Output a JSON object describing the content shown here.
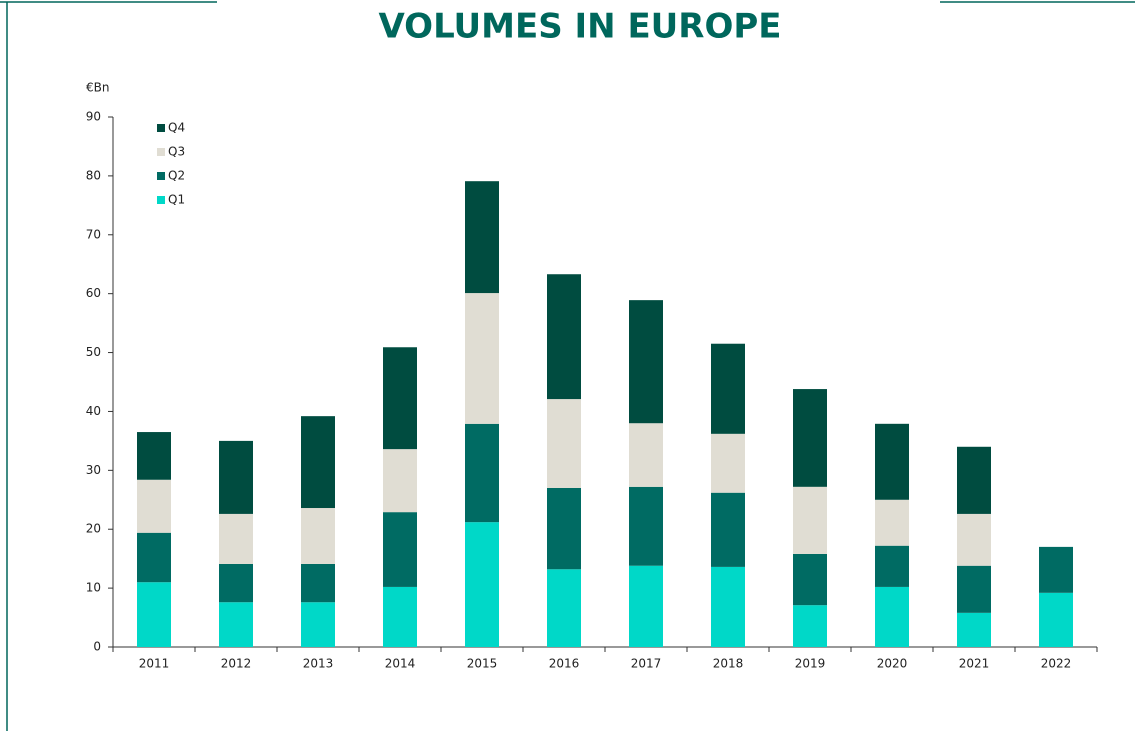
{
  "chart_data": {
    "type": "stacked_bar",
    "title": "VOLUMES IN EUROPE",
    "y_label": "€Bn",
    "categories": [
      "2011",
      "2012",
      "2013",
      "2014",
      "2015",
      "2016",
      "2017",
      "2018",
      "2019",
      "2020",
      "2021",
      "2022"
    ],
    "series": [
      {
        "name": "Q1",
        "color": "#00d8c8",
        "values": [
          11.0,
          7.6,
          7.6,
          10.2,
          21.2,
          13.2,
          13.8,
          13.6,
          7.1,
          10.2,
          5.8,
          9.2
        ]
      },
      {
        "name": "Q2",
        "color": "#006b63",
        "values": [
          8.4,
          6.5,
          6.5,
          12.7,
          16.7,
          13.8,
          13.4,
          12.6,
          8.7,
          7.0,
          8.0,
          7.8
        ]
      },
      {
        "name": "Q3",
        "color": "#e0ddd3",
        "values": [
          9.0,
          8.5,
          9.5,
          10.7,
          22.2,
          15.1,
          10.8,
          10.0,
          11.4,
          7.8,
          8.8,
          null
        ]
      },
      {
        "name": "Q4",
        "color": "#004c40",
        "values": [
          8.1,
          12.4,
          15.6,
          17.3,
          19.0,
          21.2,
          20.9,
          15.3,
          16.6,
          12.9,
          11.4,
          null
        ]
      }
    ],
    "ylim": [
      0,
      90
    ],
    "yticks": [
      0,
      10,
      20,
      30,
      40,
      50,
      60,
      70,
      80,
      90
    ],
    "legend": "upper-left"
  }
}
